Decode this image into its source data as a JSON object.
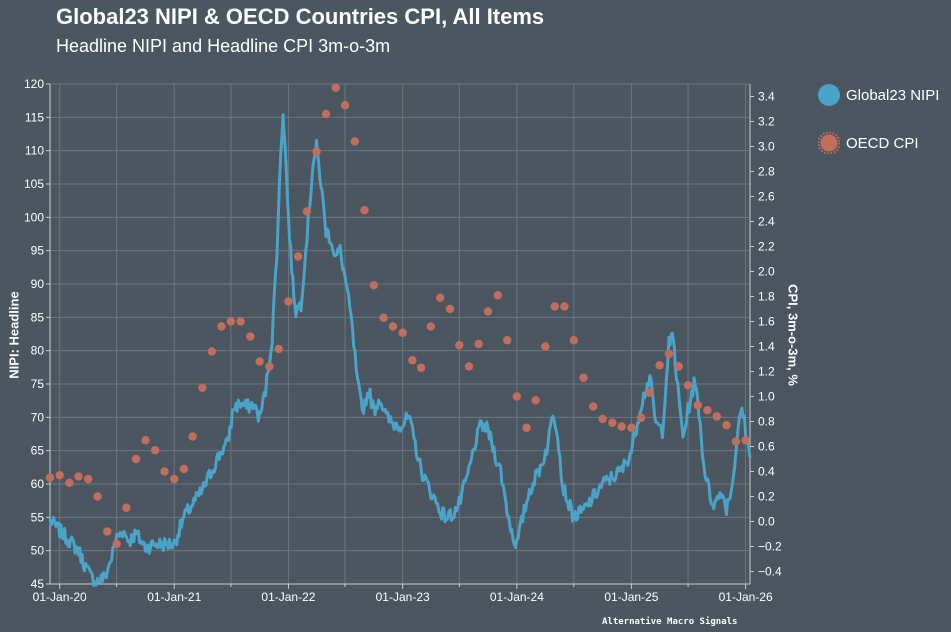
{
  "chart_data": {
    "type": "line+scatter",
    "title": "Global23 NIPI & OECD Countries CPI, All Items",
    "subtitle": "Headline NIPI and Headline CPI 3m-o-3m",
    "ylabel_left": "NIPI: Headline",
    "ylabel_right": "CPI, 3m-o-3m, %",
    "x_range": [
      "2019-12-01",
      "2026-01-15"
    ],
    "x_ticks": [
      {
        "date": "2020-01-01",
        "label": "01-Jan-20"
      },
      {
        "date": "2021-01-01",
        "label": "01-Jan-21"
      },
      {
        "date": "2022-01-01",
        "label": "01-Jan-22"
      },
      {
        "date": "2023-01-01",
        "label": "01-Jan-23"
      },
      {
        "date": "2024-01-01",
        "label": "01-Jan-24"
      },
      {
        "date": "2025-01-01",
        "label": "01-Jan-25"
      },
      {
        "date": "2026-01-01",
        "label": "01-Jan-26"
      }
    ],
    "x_minor_grid": [
      "2020-07-01",
      "2021-07-01",
      "2022-07-01",
      "2023-07-01",
      "2024-07-01",
      "2025-07-01"
    ],
    "y_left": {
      "range": [
        45,
        120
      ],
      "ticks": [
        "45",
        "50",
        "55",
        "60",
        "65",
        "70",
        "75",
        "80",
        "85",
        "90",
        "95",
        "100",
        "105",
        "110",
        "115",
        "120"
      ]
    },
    "y_right": {
      "range": [
        -0.5,
        3.5
      ],
      "ticks": [
        "−0.4",
        "−0.2",
        "0.0",
        "0.2",
        "0.4",
        "0.6",
        "0.8",
        "1.0",
        "1.2",
        "1.4",
        "1.6",
        "1.8",
        "2.0",
        "2.2",
        "2.4",
        "2.6",
        "2.8",
        "3.0",
        "3.2",
        "3.4"
      ]
    },
    "series": [
      {
        "name": "Global23 NIPI",
        "axis": "left",
        "kind": "line",
        "color": "#4aa3c8",
        "points": [
          [
            "2019-12-01",
            54.5
          ],
          [
            "2020-01-01",
            53
          ],
          [
            "2020-02-01",
            51.5
          ],
          [
            "2020-03-01",
            50
          ],
          [
            "2020-03-20",
            48
          ],
          [
            "2020-04-10",
            46
          ],
          [
            "2020-05-01",
            45.5
          ],
          [
            "2020-05-25",
            46
          ],
          [
            "2020-06-15",
            49
          ],
          [
            "2020-07-01",
            52
          ],
          [
            "2020-07-20",
            53
          ],
          [
            "2020-08-10",
            51.5
          ],
          [
            "2020-09-01",
            52.5
          ],
          [
            "2020-10-01",
            50.5
          ],
          [
            "2020-11-01",
            51
          ],
          [
            "2020-12-01",
            51
          ],
          [
            "2021-01-01",
            51
          ],
          [
            "2021-02-01",
            55
          ],
          [
            "2021-03-01",
            57
          ],
          [
            "2021-04-01",
            59
          ],
          [
            "2021-05-01",
            62
          ],
          [
            "2021-06-01",
            65
          ],
          [
            "2021-06-20",
            66
          ],
          [
            "2021-07-10",
            71.5
          ],
          [
            "2021-08-01",
            72
          ],
          [
            "2021-08-20",
            71.5
          ],
          [
            "2021-09-10",
            72
          ],
          [
            "2021-10-01",
            70
          ],
          [
            "2021-10-20",
            74
          ],
          [
            "2021-11-10",
            82
          ],
          [
            "2021-11-25",
            95
          ],
          [
            "2021-12-08",
            110
          ],
          [
            "2021-12-15",
            116
          ],
          [
            "2021-12-22",
            110
          ],
          [
            "2022-01-01",
            100
          ],
          [
            "2022-01-15",
            90
          ],
          [
            "2022-01-25",
            86
          ],
          [
            "2022-02-10",
            87
          ],
          [
            "2022-02-25",
            95
          ],
          [
            "2022-03-10",
            102
          ],
          [
            "2022-03-20",
            108
          ],
          [
            "2022-04-01",
            110.5
          ],
          [
            "2022-04-15",
            105
          ],
          [
            "2022-05-01",
            98
          ],
          [
            "2022-05-15",
            97
          ],
          [
            "2022-06-01",
            94
          ],
          [
            "2022-06-15",
            95
          ],
          [
            "2022-07-01",
            91
          ],
          [
            "2022-07-20",
            85
          ],
          [
            "2022-08-10",
            75
          ],
          [
            "2022-08-25",
            71
          ],
          [
            "2022-09-15",
            74
          ],
          [
            "2022-10-01",
            71
          ],
          [
            "2022-10-20",
            73
          ],
          [
            "2022-11-10",
            70
          ],
          [
            "2022-12-01",
            69
          ],
          [
            "2023-01-01",
            69
          ],
          [
            "2023-01-20",
            70
          ],
          [
            "2023-02-10",
            66
          ],
          [
            "2023-03-01",
            62
          ],
          [
            "2023-03-20",
            60
          ],
          [
            "2023-04-10",
            58
          ],
          [
            "2023-05-01",
            56
          ],
          [
            "2023-05-20",
            55
          ],
          [
            "2023-06-10",
            55.5
          ],
          [
            "2023-07-01",
            57
          ],
          [
            "2023-08-01",
            62
          ],
          [
            "2023-08-20",
            66
          ],
          [
            "2023-09-10",
            69
          ],
          [
            "2023-10-01",
            68
          ],
          [
            "2023-10-20",
            65
          ],
          [
            "2023-11-10",
            62
          ],
          [
            "2023-12-01",
            56
          ],
          [
            "2023-12-20",
            52
          ],
          [
            "2024-01-01",
            51
          ],
          [
            "2024-01-20",
            55
          ],
          [
            "2024-02-10",
            59
          ],
          [
            "2024-03-01",
            61
          ],
          [
            "2024-03-20",
            63
          ],
          [
            "2024-04-10",
            66
          ],
          [
            "2024-04-25",
            71
          ],
          [
            "2024-05-10",
            68
          ],
          [
            "2024-05-25",
            60
          ],
          [
            "2024-06-15",
            57
          ],
          [
            "2024-07-01",
            55
          ],
          [
            "2024-08-01",
            56
          ],
          [
            "2024-09-01",
            58
          ],
          [
            "2024-10-01",
            60
          ],
          [
            "2024-11-01",
            61
          ],
          [
            "2024-12-01",
            62
          ],
          [
            "2025-01-01",
            65
          ],
          [
            "2025-02-01",
            72
          ],
          [
            "2025-03-01",
            76
          ],
          [
            "2025-03-20",
            69
          ],
          [
            "2025-04-10",
            68
          ],
          [
            "2025-05-01",
            81
          ],
          [
            "2025-05-15",
            82
          ],
          [
            "2025-05-25",
            76
          ],
          [
            "2025-06-15",
            67
          ],
          [
            "2025-07-01",
            71
          ],
          [
            "2025-07-20",
            75
          ],
          [
            "2025-08-01",
            73
          ],
          [
            "2025-08-20",
            63
          ],
          [
            "2025-09-10",
            58
          ],
          [
            "2025-09-25",
            57
          ],
          [
            "2025-10-15",
            59
          ],
          [
            "2025-11-01",
            56.5
          ],
          [
            "2025-11-20",
            60
          ],
          [
            "2025-12-05",
            67
          ],
          [
            "2025-12-20",
            71.5
          ],
          [
            "2026-01-05",
            67
          ],
          [
            "2026-01-15",
            64
          ]
        ]
      },
      {
        "name": "OECD CPI",
        "axis": "right",
        "kind": "scatter",
        "color": "#c26e5c",
        "points": [
          [
            "2019-12-01",
            0.35
          ],
          [
            "2020-01-01",
            0.37
          ],
          [
            "2020-02-01",
            0.31
          ],
          [
            "2020-03-01",
            0.36
          ],
          [
            "2020-04-01",
            0.34
          ],
          [
            "2020-05-01",
            0.2
          ],
          [
            "2020-06-01",
            -0.08
          ],
          [
            "2020-07-01",
            -0.18
          ],
          [
            "2020-08-01",
            0.11
          ],
          [
            "2020-09-01",
            0.5
          ],
          [
            "2020-10-01",
            0.65
          ],
          [
            "2020-11-01",
            0.57
          ],
          [
            "2020-12-01",
            0.4
          ],
          [
            "2021-01-01",
            0.34
          ],
          [
            "2021-02-01",
            0.42
          ],
          [
            "2021-03-01",
            0.68
          ],
          [
            "2021-04-01",
            1.07
          ],
          [
            "2021-05-01",
            1.36
          ],
          [
            "2021-06-01",
            1.56
          ],
          [
            "2021-07-01",
            1.6
          ],
          [
            "2021-08-01",
            1.6
          ],
          [
            "2021-09-01",
            1.48
          ],
          [
            "2021-10-01",
            1.28
          ],
          [
            "2021-11-01",
            1.24
          ],
          [
            "2021-12-01",
            1.38
          ],
          [
            "2022-01-01",
            1.76
          ],
          [
            "2022-02-01",
            2.12
          ],
          [
            "2022-03-01",
            2.48
          ],
          [
            "2022-04-01",
            2.96
          ],
          [
            "2022-05-01",
            3.26
          ],
          [
            "2022-06-01",
            3.47
          ],
          [
            "2022-07-01",
            3.33
          ],
          [
            "2022-08-01",
            3.04
          ],
          [
            "2022-09-01",
            2.49
          ],
          [
            "2022-10-01",
            1.89
          ],
          [
            "2022-11-01",
            1.63
          ],
          [
            "2022-12-01",
            1.56
          ],
          [
            "2023-01-01",
            1.51
          ],
          [
            "2023-02-01",
            1.29
          ],
          [
            "2023-03-01",
            1.23
          ],
          [
            "2023-04-01",
            1.56
          ],
          [
            "2023-05-01",
            1.79
          ],
          [
            "2023-06-01",
            1.7
          ],
          [
            "2023-07-01",
            1.41
          ],
          [
            "2023-08-01",
            1.24
          ],
          [
            "2023-09-01",
            1.42
          ],
          [
            "2023-10-01",
            1.68
          ],
          [
            "2023-11-01",
            1.81
          ],
          [
            "2023-12-01",
            1.45
          ],
          [
            "2024-01-01",
            1.0
          ],
          [
            "2024-02-01",
            0.75
          ],
          [
            "2024-03-01",
            0.97
          ],
          [
            "2024-04-01",
            1.4
          ],
          [
            "2024-05-01",
            1.72
          ],
          [
            "2024-06-01",
            1.72
          ],
          [
            "2024-07-01",
            1.45
          ],
          [
            "2024-08-01",
            1.15
          ],
          [
            "2024-09-01",
            0.92
          ],
          [
            "2024-10-01",
            0.82
          ],
          [
            "2024-11-01",
            0.79
          ],
          [
            "2024-12-01",
            0.76
          ],
          [
            "2025-01-01",
            0.75
          ],
          [
            "2025-02-01",
            0.83
          ],
          [
            "2025-03-01",
            1.03
          ],
          [
            "2025-04-01",
            1.25
          ],
          [
            "2025-05-01",
            1.34
          ],
          [
            "2025-06-01",
            1.24
          ],
          [
            "2025-07-01",
            1.09
          ],
          [
            "2025-08-01",
            0.93
          ],
          [
            "2025-09-01",
            0.89
          ],
          [
            "2025-10-01",
            0.84
          ],
          [
            "2025-11-01",
            0.77
          ],
          [
            "2025-12-01",
            0.64
          ],
          [
            "2026-01-01",
            0.65
          ]
        ]
      }
    ]
  },
  "legend": {
    "items": [
      {
        "label": "Global23 NIPI",
        "color": "#4aa3c8",
        "icon": "circle-swatch-icon"
      },
      {
        "label": "OECD CPI",
        "color": "#c26e5c",
        "icon": "gear-swatch-icon"
      }
    ]
  },
  "watermark": "Alternative Macro Signals",
  "colors": {
    "background": "#4b5660",
    "grid": "#6b7780",
    "axis": "#c8cdd2",
    "text": "#ffffff"
  }
}
